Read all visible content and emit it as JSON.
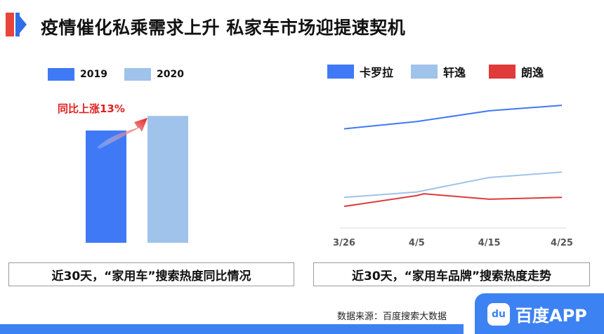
{
  "page": {
    "title": "疫情催化私乘需求上升 私家车市场迎提速契机",
    "source": "数据来源：百度搜索大数据",
    "logo_text": "百度APP",
    "logo_mark": "du"
  },
  "colors": {
    "accent_red": "#e8443a",
    "accent_blue": "#2f6fe6",
    "bar_2019": "#3f79f6",
    "bar_2020": "#9fc3ea",
    "line_corolla": "#3f79f6",
    "line_levin": "#9fc3ea",
    "line_lavida": "#e03a3a",
    "arrow_red": "#e02020"
  },
  "chart_data": [
    {
      "type": "bar",
      "categories": [
        "2019",
        "2020"
      ],
      "values": [
        100,
        113
      ],
      "ylim": [
        0,
        135
      ],
      "legend": [
        "2019",
        "2020"
      ],
      "legend_position": "top-left",
      "annotation": "同比上涨13%",
      "caption": "近30天，“家用车”搜索热度同比情况",
      "grid": false
    },
    {
      "type": "line",
      "x": [
        "3/26",
        "4/5",
        "4/15",
        "4/25"
      ],
      "x_positions": [
        0,
        10,
        20,
        30
      ],
      "series": [
        {
          "name": "卡罗拉",
          "x": [
            0,
            10,
            20,
            30
          ],
          "values": [
            85,
            89,
            95,
            98
          ]
        },
        {
          "name": "轩逸",
          "x": [
            0,
            10,
            20,
            30
          ],
          "values": [
            47,
            50,
            58,
            61
          ]
        },
        {
          "name": "朗逸",
          "x": [
            0,
            10,
            11,
            20,
            30
          ],
          "values": [
            42,
            48,
            49,
            46,
            47
          ]
        }
      ],
      "ylim": [
        30,
        100
      ],
      "legend_position": "top",
      "caption": "近30天，“家用车品牌”搜索热度走势",
      "grid": false
    }
  ]
}
